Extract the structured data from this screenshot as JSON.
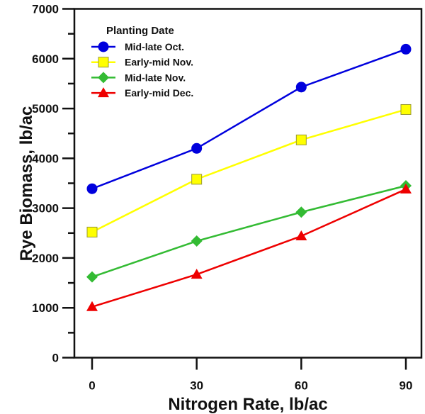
{
  "chart_data": {
    "type": "line",
    "title": "",
    "xlabel": "Nitrogen Rate, lb/ac",
    "ylabel": "Rye Biomass, lb/ac",
    "x": [
      0,
      30,
      60,
      90
    ],
    "x_tick_labels": [
      "0",
      "30",
      "60",
      "90"
    ],
    "xlim": [
      -5,
      97
    ],
    "ylim": [
      0,
      7000
    ],
    "y_ticks": [
      0,
      1000,
      2000,
      3000,
      4000,
      5000,
      6000,
      7000
    ],
    "y_tick_labels": [
      "0",
      "1000",
      "2000",
      "3000",
      "4000",
      "5000",
      "6000",
      "7000"
    ],
    "y_minor_step": 500,
    "grid": false,
    "legend": {
      "title": "Planting Date",
      "placement": "top-left"
    },
    "series": [
      {
        "name": "Mid-late Oct.",
        "color": "#0000dd",
        "marker": "circle",
        "values": [
          3390,
          4200,
          5430,
          6190
        ]
      },
      {
        "name": "Early-mid Nov.",
        "color": "#ffff00",
        "marker": "square",
        "marker_edge": "#999933",
        "values": [
          2520,
          3580,
          4370,
          4980
        ]
      },
      {
        "name": "Mid-late Nov.",
        "color": "#33bb33",
        "marker": "diamond",
        "values": [
          1620,
          2340,
          2920,
          3450
        ]
      },
      {
        "name": "Early-mid Dec.",
        "color": "#ee0000",
        "marker": "triangle",
        "values": [
          1020,
          1670,
          2440,
          3380
        ]
      }
    ]
  }
}
